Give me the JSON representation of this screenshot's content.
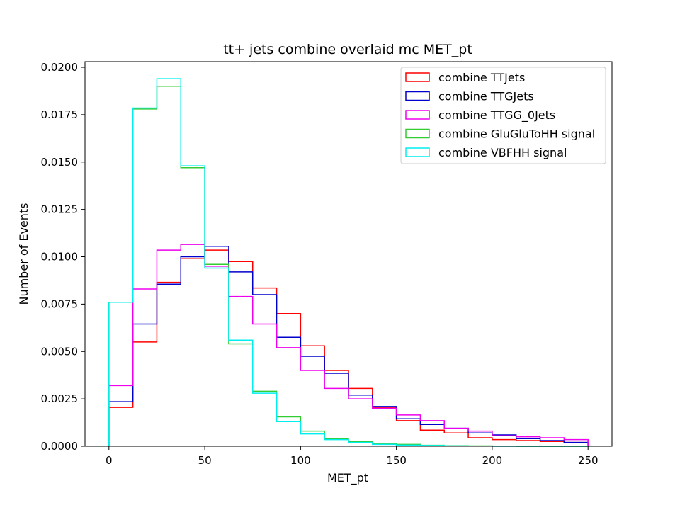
{
  "chart_data": {
    "type": "histogram_step",
    "title": "tt+ jets combine overlaid mc MET_pt",
    "xlabel": "MET_pt",
    "ylabel": "Number of Events",
    "xlim": [
      -12.5,
      262.5
    ],
    "ylim": [
      0.0,
      0.0203
    ],
    "xticks": [
      0,
      50,
      100,
      150,
      200,
      250
    ],
    "xtick_labels": [
      "0",
      "50",
      "100",
      "150",
      "200",
      "250"
    ],
    "yticks": [
      0.0,
      0.0025,
      0.005,
      0.0075,
      0.01,
      0.0125,
      0.015,
      0.0175,
      0.02
    ],
    "ytick_labels": [
      "0.0000",
      "0.0025",
      "0.0050",
      "0.0075",
      "0.0100",
      "0.0125",
      "0.0150",
      "0.0175",
      "0.0200"
    ],
    "bin_edges": [
      0,
      12.5,
      25,
      37.5,
      50,
      62.5,
      75,
      87.5,
      100,
      112.5,
      125,
      137.5,
      150,
      162.5,
      175,
      187.5,
      200,
      212.5,
      225,
      237.5,
      250
    ],
    "grid": false,
    "legend_position": "top-right",
    "series": [
      {
        "name": "combine TTJets",
        "color": "#ff0000",
        "values": [
          0.00205,
          0.0055,
          0.00865,
          0.0099,
          0.01035,
          0.00975,
          0.00835,
          0.007,
          0.0053,
          0.004,
          0.00305,
          0.00205,
          0.00135,
          0.00085,
          0.0007,
          0.00045,
          0.00035,
          0.0003,
          0.00025,
          0.0002
        ]
      },
      {
        "name": "combine TTGJets",
        "color": "#0000cc",
        "values": [
          0.00235,
          0.00645,
          0.00855,
          0.01,
          0.01055,
          0.0092,
          0.008,
          0.00575,
          0.00475,
          0.00385,
          0.0027,
          0.0021,
          0.00145,
          0.00115,
          0.00095,
          0.0007,
          0.0006,
          0.0004,
          0.0003,
          0.0002
        ]
      },
      {
        "name": "combine TTGG_0Jets",
        "color": "#ee00ee",
        "values": [
          0.0032,
          0.0083,
          0.01035,
          0.01065,
          0.0095,
          0.0079,
          0.00645,
          0.0052,
          0.004,
          0.00305,
          0.0025,
          0.002,
          0.00165,
          0.00135,
          0.00095,
          0.0008,
          0.00055,
          0.0005,
          0.00045,
          0.00035
        ]
      },
      {
        "name": "combine GluGluToHH signal",
        "color": "#33cc33",
        "values": [
          0.0076,
          0.0178,
          0.019,
          0.0147,
          0.0096,
          0.0054,
          0.0029,
          0.00155,
          0.0008,
          0.0004,
          0.00025,
          0.00015,
          0.0001,
          5e-05,
          3e-05,
          2e-05,
          1e-05,
          0.0,
          0.0,
          0.0
        ]
      },
      {
        "name": "combine VBFHH signal",
        "color": "#00eeee",
        "values": [
          0.0076,
          0.01785,
          0.0194,
          0.0148,
          0.0094,
          0.0056,
          0.0028,
          0.0013,
          0.00065,
          0.00035,
          0.0002,
          0.0001,
          6e-05,
          4e-05,
          2e-05,
          1e-05,
          0.0,
          0.0,
          0.0,
          0.0
        ]
      }
    ]
  }
}
